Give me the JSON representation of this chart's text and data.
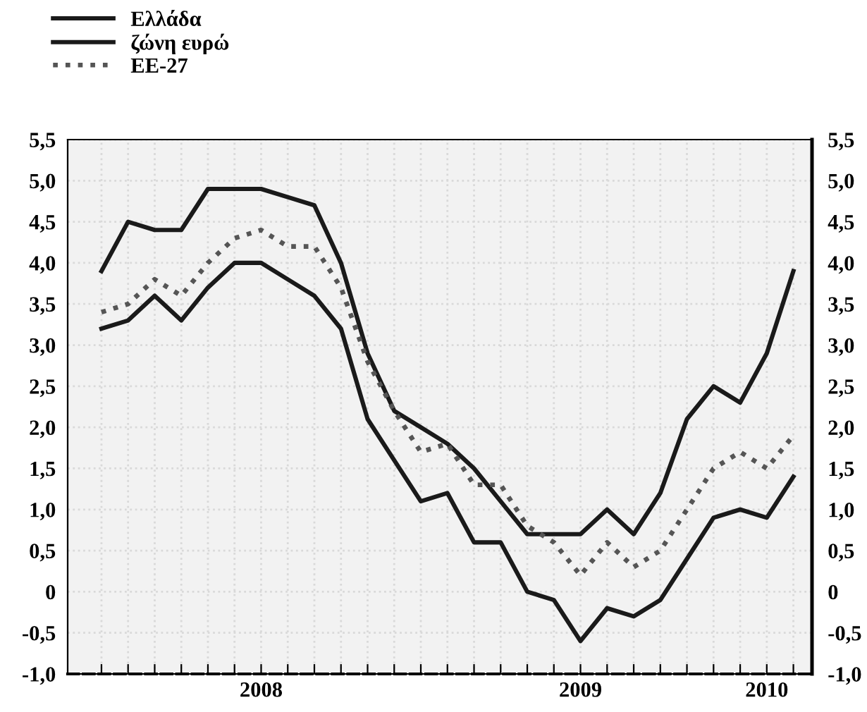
{
  "chart_data": {
    "type": "line",
    "categories": [
      null,
      null,
      null,
      null,
      null,
      null,
      "2008",
      null,
      null,
      null,
      null,
      null,
      null,
      null,
      null,
      null,
      null,
      null,
      "2009",
      null,
      null,
      null,
      null,
      null,
      null,
      "2010",
      null
    ],
    "series": [
      {
        "name": "Ελλάδα",
        "color": "#1a1a1a",
        "line_style": "solid",
        "values": [
          3.9,
          4.5,
          4.4,
          4.4,
          4.9,
          4.9,
          4.9,
          4.8,
          4.7,
          4.0,
          2.9,
          2.2,
          2.0,
          1.8,
          1.5,
          1.1,
          0.7,
          0.7,
          0.7,
          1.0,
          0.7,
          1.2,
          2.1,
          2.5,
          2.3,
          2.9,
          3.9
        ]
      },
      {
        "name": "ζώνη ευρώ",
        "color": "#1a1a1a",
        "line_style": "solid",
        "values": [
          3.2,
          3.3,
          3.6,
          3.3,
          3.7,
          4.0,
          4.0,
          3.8,
          3.6,
          3.2,
          2.1,
          1.6,
          1.1,
          1.2,
          0.6,
          0.6,
          0.0,
          -0.1,
          -0.6,
          -0.2,
          -0.3,
          -0.1,
          0.4,
          0.9,
          1.0,
          0.9,
          1.4
        ]
      },
      {
        "name": "ΕΕ-27",
        "color": "#555555",
        "line_style": "dotted",
        "values": [
          3.4,
          3.5,
          3.8,
          3.6,
          4.0,
          4.3,
          4.4,
          4.2,
          4.2,
          3.7,
          2.8,
          2.2,
          1.7,
          1.8,
          1.3,
          1.3,
          0.8,
          0.6,
          0.2,
          0.6,
          0.3,
          0.5,
          1.0,
          1.5,
          1.7,
          1.5,
          1.9
        ]
      }
    ],
    "ylim": [
      -1.0,
      5.5
    ],
    "yticks": [
      {
        "value": -1.0,
        "label": "-1,0"
      },
      {
        "value": -0.5,
        "label": "-0,5"
      },
      0,
      {
        "value": 0.5,
        "label": "0,5"
      },
      {
        "value": 1.0,
        "label": "1,0"
      },
      {
        "value": 1.5,
        "label": "1,5"
      },
      {
        "value": 2.0,
        "label": "2,0"
      },
      {
        "value": 2.5,
        "label": "2,5"
      },
      {
        "value": 3.0,
        "label": "3,0"
      },
      {
        "value": 3.5,
        "label": "3,5"
      },
      {
        "value": 4.0,
        "label": "4,0"
      },
      {
        "value": 4.5,
        "label": "4,5"
      },
      {
        "value": 5.0,
        "label": "5,0"
      },
      {
        "value": 5.5,
        "label": "5,5"
      }
    ],
    "y2lim": [
      -1.0,
      5.5
    ],
    "y2ticks": [
      {
        "value": -1.0,
        "label": "-1,0"
      },
      {
        "value": -0.5,
        "label": "-0,5"
      },
      0,
      {
        "value": 0.5,
        "label": "0,5"
      },
      {
        "value": 1.0,
        "label": "1,0"
      },
      {
        "value": 1.5,
        "label": "1,5"
      },
      {
        "value": 2.0,
        "label": "2,0"
      },
      {
        "value": 2.5,
        "label": "2,5"
      },
      {
        "value": 3.0,
        "label": "3,0"
      },
      {
        "value": 3.5,
        "label": "3,5"
      },
      {
        "value": 4.0,
        "label": "4,0"
      },
      {
        "value": 4.5,
        "label": "4,5"
      },
      {
        "value": 5.0,
        "label": "5,0"
      },
      {
        "value": 5.5,
        "label": "5,5"
      }
    ],
    "grid": true,
    "legend": "top left",
    "marker": "none"
  }
}
